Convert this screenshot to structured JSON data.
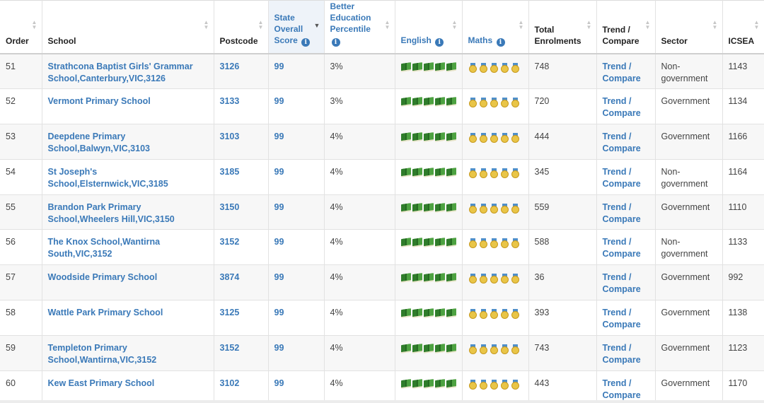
{
  "columns": [
    {
      "key": "order",
      "label": "Order",
      "info": false
    },
    {
      "key": "school",
      "label": "School",
      "info": false
    },
    {
      "key": "postcode",
      "label": "Postcode",
      "info": false
    },
    {
      "key": "state",
      "label": "State Overall Score",
      "info": true
    },
    {
      "key": "better",
      "label": "Better Education Percentile",
      "info": true
    },
    {
      "key": "english",
      "label": "English",
      "info": true
    },
    {
      "key": "maths",
      "label": "Maths",
      "info": true
    },
    {
      "key": "total",
      "label": "Total Enrolments",
      "info": false
    },
    {
      "key": "trend",
      "label": "Trend / Compare",
      "info": false
    },
    {
      "key": "sector",
      "label": "Sector",
      "info": false
    },
    {
      "key": "icsea",
      "label": "ICSEA",
      "info": false
    }
  ],
  "header_lines": {
    "order": [
      "Order"
    ],
    "school": [
      "School"
    ],
    "postcode": [
      "Postcode"
    ],
    "state": [
      "State",
      "Overall",
      "Score"
    ],
    "better": [
      "Better",
      "Education",
      "Percentile"
    ],
    "english": [
      "English"
    ],
    "maths": [
      "Maths"
    ],
    "total": [
      "Total",
      "Enrolments"
    ],
    "trend": [
      "Trend /",
      "Compare"
    ],
    "sector": [
      "Sector"
    ],
    "icsea": [
      "ICSEA"
    ]
  },
  "trend_label": [
    "Trend /",
    "Compare"
  ],
  "english_icons": {
    "icon": "book-icon",
    "count": 5,
    "color": "#2f7d2b"
  },
  "maths_icons": {
    "icon": "medal-icon",
    "count": 5,
    "color": "#e9c547"
  },
  "accent_color": "#3a79b8",
  "rows": [
    {
      "order": "51",
      "school": [
        "Strathcona Baptist Girls' Grammar",
        "School,Canterbury,VIC,3126"
      ],
      "postcode": "3126",
      "state": "99",
      "better": "3%",
      "total": "748",
      "sector": [
        "Non-",
        "government"
      ],
      "icsea": "1143"
    },
    {
      "order": "52",
      "school": [
        "Vermont Primary School"
      ],
      "postcode": "3133",
      "state": "99",
      "better": "3%",
      "total": "720",
      "sector": [
        "Government"
      ],
      "icsea": "1134"
    },
    {
      "order": "53",
      "school": [
        "Deepdene Primary",
        "School,Balwyn,VIC,3103"
      ],
      "postcode": "3103",
      "state": "99",
      "better": "4%",
      "total": "444",
      "sector": [
        "Government"
      ],
      "icsea": "1166"
    },
    {
      "order": "54",
      "school": [
        "St Joseph's",
        "School,Elsternwick,VIC,3185"
      ],
      "postcode": "3185",
      "state": "99",
      "better": "4%",
      "total": "345",
      "sector": [
        "Non-",
        "government"
      ],
      "icsea": "1164"
    },
    {
      "order": "55",
      "school": [
        "Brandon Park Primary",
        "School,Wheelers Hill,VIC,3150"
      ],
      "postcode": "3150",
      "state": "99",
      "better": "4%",
      "total": "559",
      "sector": [
        "Government"
      ],
      "icsea": "1110"
    },
    {
      "order": "56",
      "school": [
        "The Knox School,Wantirna",
        "South,VIC,3152"
      ],
      "postcode": "3152",
      "state": "99",
      "better": "4%",
      "total": "588",
      "sector": [
        "Non-",
        "government"
      ],
      "icsea": "1133"
    },
    {
      "order": "57",
      "school": [
        "Woodside Primary School"
      ],
      "postcode": "3874",
      "state": "99",
      "better": "4%",
      "total": "36",
      "sector": [
        "Government"
      ],
      "icsea": "992"
    },
    {
      "order": "58",
      "school": [
        "Wattle Park Primary School"
      ],
      "postcode": "3125",
      "state": "99",
      "better": "4%",
      "total": "393",
      "sector": [
        "Government"
      ],
      "icsea": "1138"
    },
    {
      "order": "59",
      "school": [
        "Templeton Primary",
        "School,Wantirna,VIC,3152"
      ],
      "postcode": "3152",
      "state": "99",
      "better": "4%",
      "total": "743",
      "sector": [
        "Government"
      ],
      "icsea": "1123"
    },
    {
      "order": "60",
      "school": [
        "Kew East Primary School"
      ],
      "postcode": "3102",
      "state": "99",
      "better": "4%",
      "total": "443",
      "sector": [
        "Government"
      ],
      "icsea": "1170"
    }
  ],
  "sorted_column": "state",
  "sort_direction": "desc"
}
